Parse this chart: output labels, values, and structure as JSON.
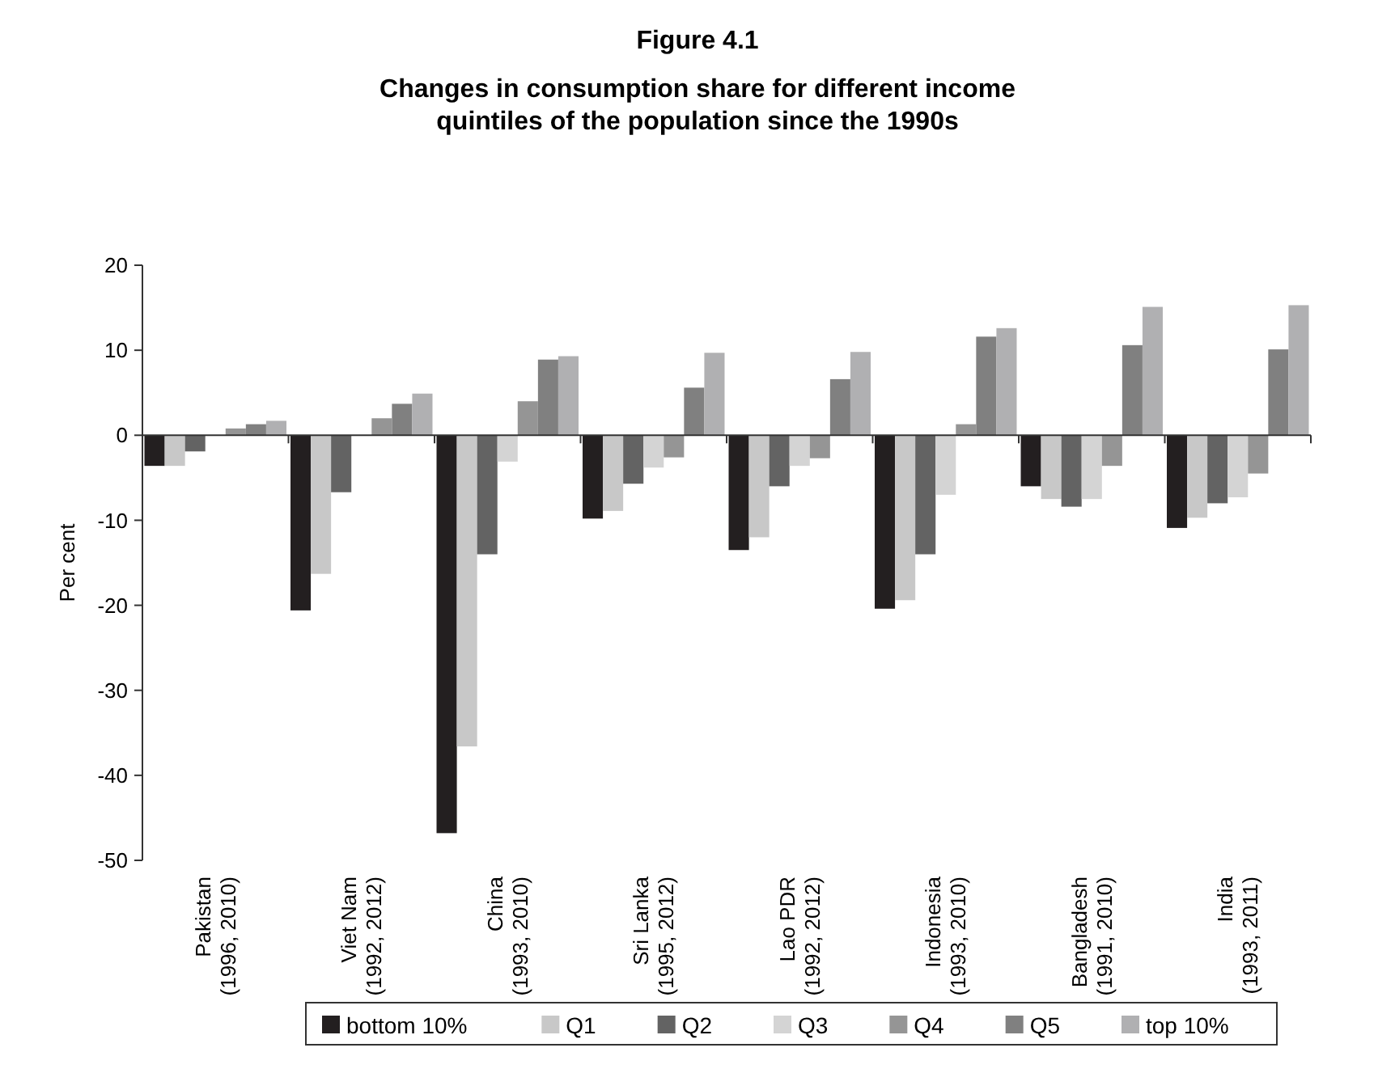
{
  "chart_data": {
    "type": "bar",
    "title": "Figure 4.1",
    "subtitle": "Changes in consumption share for different income quintiles of the population since the 1990s",
    "ylabel": "Per cent",
    "categories": [
      "Pakistan\n(1996, 2010)",
      "Viet Nam\n(1992, 2012)",
      "China\n(1993, 2010)",
      "Sri Lanka\n(1995, 2012)",
      "Lao PDR\n(1992, 2012)",
      "Indonesia\n(1993, 2010)",
      "Bangladesh\n(1991, 2010)",
      "India\n(1993, 2011)"
    ],
    "series": [
      {
        "name": "bottom 10%",
        "color": "#231f20",
        "values": [
          -3.6,
          -20.6,
          -46.8,
          -9.8,
          -13.5,
          -20.4,
          -6.0,
          -10.9
        ]
      },
      {
        "name": "Q1",
        "color": "#c8c8c8",
        "values": [
          -3.6,
          -16.3,
          -36.6,
          -8.9,
          -12.0,
          -19.4,
          -7.5,
          -9.7
        ]
      },
      {
        "name": "Q2",
        "color": "#636363",
        "values": [
          -1.9,
          -6.7,
          -14.0,
          -5.7,
          -6.0,
          -14.0,
          -8.4,
          -8.0
        ]
      },
      {
        "name": "Q3",
        "color": "#d4d4d4",
        "values": [
          0,
          0,
          -3.1,
          -3.8,
          -3.6,
          -7.0,
          -7.5,
          -7.3
        ]
      },
      {
        "name": "Q4",
        "color": "#959595",
        "values": [
          0.8,
          2.0,
          4.0,
          -2.6,
          -2.7,
          1.3,
          -3.6,
          -4.5
        ]
      },
      {
        "name": "Q5",
        "color": "#808080",
        "values": [
          1.3,
          3.7,
          8.9,
          5.6,
          6.6,
          11.6,
          10.6,
          10.1
        ]
      },
      {
        "name": "top 10%",
        "color": "#b0b0b2",
        "values": [
          1.7,
          4.9,
          9.3,
          9.7,
          9.8,
          12.6,
          15.1,
          15.3
        ]
      }
    ],
    "ylim": [
      -50,
      20
    ],
    "yticks": [
      -50,
      -40,
      -30,
      -20,
      -10,
      0,
      10,
      20
    ],
    "legend": "bottom"
  }
}
